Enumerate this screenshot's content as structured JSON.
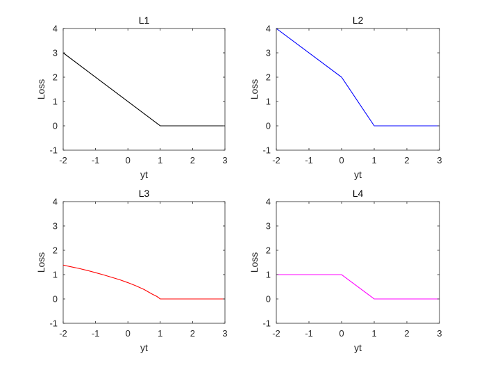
{
  "chart_data": [
    {
      "type": "line",
      "title": "L1",
      "xlabel": "yt",
      "ylabel": "Loss",
      "xlim": [
        -2,
        3
      ],
      "ylim": [
        -1,
        4
      ],
      "xticks": [
        "-2",
        "-1",
        "0",
        "1",
        "2",
        "3"
      ],
      "yticks": [
        "-1",
        "0",
        "1",
        "2",
        "3",
        "4"
      ],
      "grid": false,
      "series": [
        {
          "color": "#000000",
          "x": [
            -2,
            1,
            3
          ],
          "y": [
            3,
            0,
            0
          ]
        }
      ]
    },
    {
      "type": "line",
      "title": "L2",
      "xlabel": "yt",
      "ylabel": "Loss",
      "xlim": [
        -2,
        3
      ],
      "ylim": [
        -1,
        4
      ],
      "xticks": [
        "-2",
        "-1",
        "0",
        "1",
        "2",
        "3"
      ],
      "yticks": [
        "-1",
        "0",
        "1",
        "2",
        "3",
        "4"
      ],
      "grid": false,
      "series": [
        {
          "color": "#0000ff",
          "x": [
            -2,
            0,
            1,
            3
          ],
          "y": [
            4,
            2,
            0,
            0
          ]
        }
      ]
    },
    {
      "type": "line",
      "title": "L3",
      "xlabel": "yt",
      "ylabel": "Loss",
      "xlim": [
        -2,
        3
      ],
      "ylim": [
        -1,
        4
      ],
      "xticks": [
        "-2",
        "-1",
        "0",
        "1",
        "2",
        "3"
      ],
      "yticks": [
        "-1",
        "0",
        "1",
        "2",
        "3",
        "4"
      ],
      "grid": false,
      "series": [
        {
          "color": "#ff0000",
          "x": [
            -2,
            -1.75,
            -1.5,
            -1.25,
            -1,
            -0.75,
            -0.5,
            -0.25,
            0,
            0.25,
            0.5,
            0.75,
            0.9,
            1,
            1.5,
            2,
            2.5,
            3
          ],
          "y": [
            1.39,
            1.32,
            1.25,
            1.17,
            1.08,
            0.99,
            0.89,
            0.79,
            0.67,
            0.54,
            0.39,
            0.2,
            0.1,
            0,
            0,
            0,
            0,
            0
          ]
        }
      ]
    },
    {
      "type": "line",
      "title": "L4",
      "xlabel": "yt",
      "ylabel": "Loss",
      "xlim": [
        -2,
        3
      ],
      "ylim": [
        -1,
        4
      ],
      "xticks": [
        "-2",
        "-1",
        "0",
        "1",
        "2",
        "3"
      ],
      "yticks": [
        "-1",
        "0",
        "1",
        "2",
        "3",
        "4"
      ],
      "grid": false,
      "series": [
        {
          "color": "#ff00ff",
          "x": [
            -2,
            0,
            1,
            3
          ],
          "y": [
            1,
            1,
            0,
            0
          ]
        }
      ]
    }
  ]
}
